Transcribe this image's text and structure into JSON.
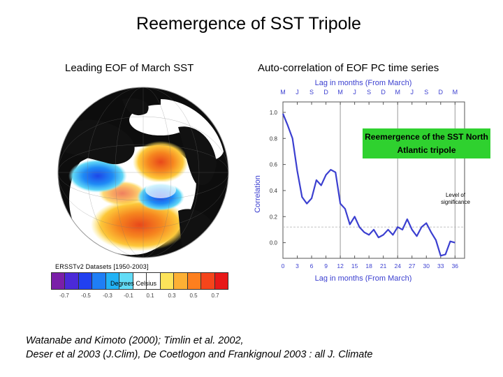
{
  "slide": {
    "title": "Reemergence of SST Tripole",
    "left_caption": "Leading EOF of March SST",
    "right_caption": "Auto-correlation of EOF PC time series",
    "citation_line1": "Watanabe and Kimoto (2000); Timlin et al. 2002,",
    "citation_line2": "Deser et al 2003 (J.Clim), De Coetlogon and Frankignoul 2003 : all J. Climate"
  },
  "map": {
    "dataset_label": "ERSSTv2 Datasets [1950-2003]",
    "colorbar_unit": "Degrees Celsius",
    "colorbar_ticks": [
      "-0.7",
      "-0.5",
      "-0.3",
      "-0.1",
      "0.1",
      "0.3",
      "0.5",
      "0.7"
    ],
    "colorbar_colors": [
      "#7a1fa8",
      "#4b2ad8",
      "#2140f0",
      "#1f7ef5",
      "#22b2f5",
      "#62dcf7",
      "#ffffff",
      "#ffffff",
      "#fde35a",
      "#fdb034",
      "#fd7f1e",
      "#f5451b",
      "#e81818"
    ]
  },
  "chart_data": {
    "type": "line",
    "title": "",
    "xlabel": "Lag in months (From March)",
    "ylabel": "Correlation",
    "top_axis_label": "Lag in months (From March)",
    "top_tick_labels": [
      "M",
      "J",
      "S",
      "D",
      "M",
      "J",
      "S",
      "D",
      "M",
      "J",
      "S",
      "D",
      "M"
    ],
    "x_tick_labels": [
      "0",
      "3",
      "6",
      "9",
      "12",
      "15",
      "18",
      "21",
      "24",
      "27",
      "30",
      "33",
      "36"
    ],
    "y_tick_labels": [
      "1.0",
      "0.8",
      "0.6",
      "0.4",
      "0.2",
      "0.0"
    ],
    "xlim": [
      0,
      38
    ],
    "ylim": [
      -0.12,
      1.08
    ],
    "vertical_lines": [
      12,
      24,
      36
    ],
    "significance_level": 0.12,
    "significance_label": "Level of significance",
    "series": [
      {
        "color": "#3b3fd0",
        "x": [
          0,
          1,
          2,
          3,
          4,
          5,
          6,
          7,
          8,
          9,
          10,
          11,
          12,
          13,
          14,
          15,
          16,
          17,
          18,
          19,
          20,
          21,
          22,
          23,
          24,
          25,
          26,
          27,
          28,
          29,
          30,
          31,
          32,
          33,
          34,
          35,
          36
        ],
        "y": [
          0.99,
          0.9,
          0.8,
          0.55,
          0.35,
          0.3,
          0.34,
          0.48,
          0.44,
          0.52,
          0.56,
          0.54,
          0.3,
          0.26,
          0.14,
          0.2,
          0.12,
          0.08,
          0.06,
          0.1,
          0.04,
          0.06,
          0.1,
          0.06,
          0.12,
          0.1,
          0.18,
          0.1,
          0.05,
          0.12,
          0.15,
          0.08,
          0.02,
          -0.1,
          -0.09,
          0.01,
          0.0
        ]
      }
    ],
    "annotation": "Reemergence of the SST North Atlantic tripole",
    "annotation_color": "#2fd12f"
  }
}
